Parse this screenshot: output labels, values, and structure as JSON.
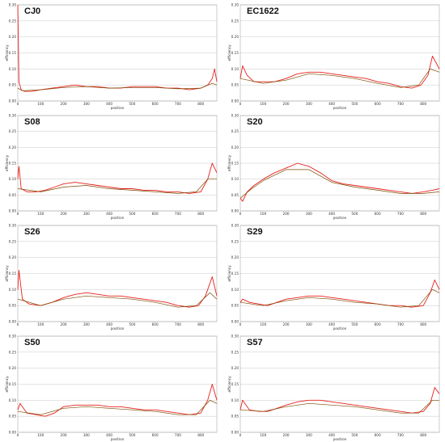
{
  "figure": {
    "panels": [
      {
        "title": "CJ0"
      },
      {
        "title": "EC1622"
      },
      {
        "title": "S08"
      },
      {
        "title": "S20"
      },
      {
        "title": "S26"
      },
      {
        "title": "S29"
      },
      {
        "title": "S50"
      },
      {
        "title": "S57"
      }
    ]
  },
  "chart_data": [
    {
      "type": "line",
      "title": "CJ0",
      "xlabel": "position",
      "ylabel": "efficiency",
      "xlim": [
        0,
        870
      ],
      "ylim": [
        0,
        0.3
      ],
      "xticks": [
        0,
        100,
        200,
        300,
        400,
        500,
        600,
        700,
        800
      ],
      "yticks": [
        0,
        0.05,
        0.1,
        0.15,
        0.2,
        0.25,
        0.3
      ],
      "grid": true,
      "series": [
        {
          "color": "#e8201c",
          "x": [
            0,
            5,
            15,
            30,
            60,
            100,
            150,
            200,
            250,
            300,
            350,
            400,
            450,
            500,
            550,
            600,
            650,
            700,
            750,
            800,
            830,
            850,
            860,
            870
          ],
          "values": [
            0.3,
            0.06,
            0.035,
            0.03,
            0.03,
            0.035,
            0.04,
            0.045,
            0.05,
            0.045,
            0.045,
            0.04,
            0.04,
            0.045,
            0.045,
            0.045,
            0.04,
            0.04,
            0.035,
            0.04,
            0.05,
            0.07,
            0.1,
            0.06
          ]
        },
        {
          "color": "#7a4a00",
          "x": [
            0,
            20,
            100,
            200,
            300,
            400,
            500,
            600,
            700,
            800,
            850,
            870
          ],
          "values": [
            0.04,
            0.032,
            0.035,
            0.042,
            0.045,
            0.04,
            0.042,
            0.042,
            0.038,
            0.04,
            0.055,
            0.05
          ]
        }
      ]
    },
    {
      "type": "line",
      "title": "EC1622",
      "xlabel": "position",
      "ylabel": "efficiency",
      "xlim": [
        0,
        870
      ],
      "ylim": [
        0,
        0.3
      ],
      "xticks": [
        0,
        100,
        200,
        300,
        400,
        500,
        600,
        700,
        800
      ],
      "yticks": [
        0,
        0.05,
        0.1,
        0.15,
        0.2,
        0.25,
        0.3
      ],
      "grid": true,
      "series": [
        {
          "color": "#e8201c",
          "x": [
            0,
            10,
            30,
            60,
            100,
            150,
            200,
            250,
            300,
            350,
            400,
            450,
            500,
            550,
            600,
            650,
            700,
            750,
            790,
            820,
            840,
            855,
            870
          ],
          "values": [
            0.07,
            0.11,
            0.08,
            0.06,
            0.06,
            0.06,
            0.07,
            0.085,
            0.09,
            0.09,
            0.085,
            0.08,
            0.075,
            0.07,
            0.06,
            0.055,
            0.045,
            0.04,
            0.05,
            0.08,
            0.14,
            0.12,
            0.1
          ]
        },
        {
          "color": "#7a4a00",
          "x": [
            0,
            100,
            200,
            300,
            400,
            500,
            600,
            700,
            780,
            830,
            870
          ],
          "values": [
            0.07,
            0.055,
            0.065,
            0.085,
            0.08,
            0.07,
            0.055,
            0.042,
            0.05,
            0.1,
            0.09
          ]
        }
      ]
    },
    {
      "type": "line",
      "title": "S08",
      "xlabel": "position",
      "ylabel": "efficiency",
      "xlim": [
        0,
        870
      ],
      "ylim": [
        0,
        0.3
      ],
      "xticks": [
        0,
        100,
        200,
        300,
        400,
        500,
        600,
        700,
        800
      ],
      "yticks": [
        0,
        0.05,
        0.1,
        0.15,
        0.2,
        0.25,
        0.3
      ],
      "grid": true,
      "series": [
        {
          "color": "#e8201c",
          "x": [
            0,
            5,
            15,
            40,
            80,
            120,
            160,
            200,
            250,
            300,
            350,
            400,
            450,
            500,
            550,
            600,
            650,
            700,
            750,
            800,
            830,
            850,
            870
          ],
          "values": [
            0.1,
            0.14,
            0.07,
            0.06,
            0.06,
            0.065,
            0.075,
            0.085,
            0.09,
            0.085,
            0.08,
            0.075,
            0.07,
            0.07,
            0.065,
            0.065,
            0.06,
            0.06,
            0.055,
            0.06,
            0.1,
            0.15,
            0.12
          ]
        },
        {
          "color": "#7a4a00",
          "x": [
            0,
            100,
            200,
            300,
            400,
            500,
            600,
            700,
            780,
            830,
            870
          ],
          "values": [
            0.07,
            0.06,
            0.075,
            0.08,
            0.07,
            0.065,
            0.06,
            0.055,
            0.06,
            0.1,
            0.1
          ]
        }
      ]
    },
    {
      "type": "line",
      "title": "S20",
      "xlabel": "position",
      "ylabel": "efficiency",
      "xlim": [
        0,
        870
      ],
      "ylim": [
        0,
        0.3
      ],
      "xticks": [
        0,
        100,
        200,
        300,
        400,
        500,
        600,
        700,
        800
      ],
      "yticks": [
        0,
        0.05,
        0.1,
        0.15,
        0.2,
        0.25,
        0.3
      ],
      "grid": true,
      "series": [
        {
          "color": "#e8201c",
          "x": [
            0,
            10,
            30,
            60,
            100,
            150,
            200,
            250,
            300,
            350,
            400,
            450,
            500,
            550,
            600,
            650,
            700,
            750,
            800,
            840,
            870
          ],
          "values": [
            0.04,
            0.03,
            0.06,
            0.08,
            0.1,
            0.12,
            0.135,
            0.15,
            0.14,
            0.12,
            0.095,
            0.085,
            0.08,
            0.075,
            0.07,
            0.065,
            0.06,
            0.055,
            0.06,
            0.065,
            0.07
          ]
        },
        {
          "color": "#7a4a00",
          "x": [
            0,
            50,
            100,
            200,
            300,
            400,
            500,
            600,
            700,
            800,
            870
          ],
          "values": [
            0.04,
            0.07,
            0.095,
            0.13,
            0.13,
            0.09,
            0.075,
            0.065,
            0.055,
            0.055,
            0.06
          ]
        }
      ]
    },
    {
      "type": "line",
      "title": "S26",
      "xlabel": "position",
      "ylabel": "efficiency",
      "xlim": [
        0,
        870
      ],
      "ylim": [
        0,
        0.3
      ],
      "xticks": [
        0,
        100,
        200,
        300,
        400,
        500,
        600,
        700,
        800
      ],
      "yticks": [
        0,
        0.05,
        0.1,
        0.15,
        0.2,
        0.25,
        0.3
      ],
      "grid": true,
      "series": [
        {
          "color": "#e8201c",
          "x": [
            0,
            5,
            20,
            50,
            100,
            150,
            200,
            250,
            300,
            350,
            400,
            450,
            500,
            550,
            600,
            650,
            700,
            750,
            790,
            820,
            850,
            870
          ],
          "values": [
            0.1,
            0.16,
            0.07,
            0.055,
            0.05,
            0.06,
            0.075,
            0.085,
            0.09,
            0.085,
            0.08,
            0.08,
            0.075,
            0.07,
            0.065,
            0.06,
            0.05,
            0.045,
            0.05,
            0.08,
            0.14,
            0.08
          ]
        },
        {
          "color": "#7a4a00",
          "x": [
            0,
            100,
            200,
            300,
            400,
            500,
            600,
            700,
            780,
            840,
            870
          ],
          "values": [
            0.07,
            0.05,
            0.07,
            0.08,
            0.075,
            0.07,
            0.06,
            0.045,
            0.05,
            0.09,
            0.07
          ]
        }
      ]
    },
    {
      "type": "line",
      "title": "S29",
      "xlabel": "position",
      "ylabel": "efficiency",
      "xlim": [
        0,
        870
      ],
      "ylim": [
        0,
        0.3
      ],
      "xticks": [
        0,
        100,
        200,
        300,
        400,
        500,
        600,
        700,
        800
      ],
      "yticks": [
        0,
        0.05,
        0.1,
        0.15,
        0.2,
        0.25,
        0.3
      ],
      "grid": true,
      "series": [
        {
          "color": "#e8201c",
          "x": [
            0,
            10,
            40,
            80,
            120,
            160,
            200,
            250,
            300,
            350,
            400,
            450,
            500,
            550,
            600,
            650,
            700,
            750,
            800,
            830,
            850,
            870
          ],
          "values": [
            0.06,
            0.07,
            0.06,
            0.055,
            0.05,
            0.06,
            0.07,
            0.075,
            0.08,
            0.08,
            0.075,
            0.07,
            0.065,
            0.06,
            0.055,
            0.05,
            0.05,
            0.045,
            0.05,
            0.09,
            0.13,
            0.1
          ]
        },
        {
          "color": "#7a4a00",
          "x": [
            0,
            100,
            200,
            300,
            400,
            500,
            600,
            700,
            780,
            840,
            870
          ],
          "values": [
            0.06,
            0.05,
            0.065,
            0.075,
            0.07,
            0.06,
            0.055,
            0.045,
            0.05,
            0.1,
            0.09
          ]
        }
      ]
    },
    {
      "type": "line",
      "title": "S50",
      "xlabel": "position",
      "ylabel": "efficiency",
      "xlim": [
        0,
        870
      ],
      "ylim": [
        0,
        0.3
      ],
      "xticks": [
        0,
        100,
        200,
        300,
        400,
        500,
        600,
        700,
        800
      ],
      "yticks": [
        0,
        0.05,
        0.1,
        0.15,
        0.2,
        0.25,
        0.3
      ],
      "grid": true,
      "series": [
        {
          "color": "#e8201c",
          "x": [
            0,
            10,
            40,
            80,
            120,
            160,
            200,
            250,
            300,
            350,
            400,
            450,
            500,
            550,
            600,
            650,
            700,
            750,
            800,
            830,
            850,
            870
          ],
          "values": [
            0.07,
            0.09,
            0.06,
            0.055,
            0.05,
            0.06,
            0.08,
            0.085,
            0.085,
            0.085,
            0.08,
            0.08,
            0.075,
            0.07,
            0.07,
            0.065,
            0.06,
            0.055,
            0.06,
            0.1,
            0.15,
            0.1
          ]
        },
        {
          "color": "#7a4a00",
          "x": [
            0,
            100,
            200,
            300,
            400,
            500,
            600,
            700,
            780,
            840,
            870
          ],
          "values": [
            0.065,
            0.055,
            0.075,
            0.08,
            0.075,
            0.07,
            0.065,
            0.055,
            0.055,
            0.1,
            0.09
          ]
        }
      ]
    },
    {
      "type": "line",
      "title": "S57",
      "xlabel": "position",
      "ylabel": "efficiency",
      "xlim": [
        0,
        870
      ],
      "ylim": [
        0,
        0.3
      ],
      "xticks": [
        0,
        100,
        200,
        300,
        400,
        500,
        600,
        700,
        800
      ],
      "yticks": [
        0,
        0.05,
        0.1,
        0.15,
        0.2,
        0.25,
        0.3
      ],
      "grid": true,
      "series": [
        {
          "color": "#e8201c",
          "x": [
            0,
            10,
            40,
            80,
            120,
            160,
            200,
            250,
            300,
            350,
            400,
            450,
            500,
            550,
            600,
            650,
            700,
            750,
            800,
            830,
            850,
            870
          ],
          "values": [
            0.07,
            0.1,
            0.07,
            0.065,
            0.065,
            0.075,
            0.085,
            0.095,
            0.1,
            0.1,
            0.095,
            0.09,
            0.085,
            0.08,
            0.075,
            0.07,
            0.065,
            0.06,
            0.065,
            0.09,
            0.14,
            0.12
          ]
        },
        {
          "color": "#7a4a00",
          "x": [
            0,
            100,
            200,
            300,
            400,
            500,
            600,
            700,
            780,
            840,
            870
          ],
          "values": [
            0.07,
            0.065,
            0.08,
            0.09,
            0.085,
            0.08,
            0.07,
            0.06,
            0.06,
            0.1,
            0.1
          ]
        }
      ]
    }
  ]
}
